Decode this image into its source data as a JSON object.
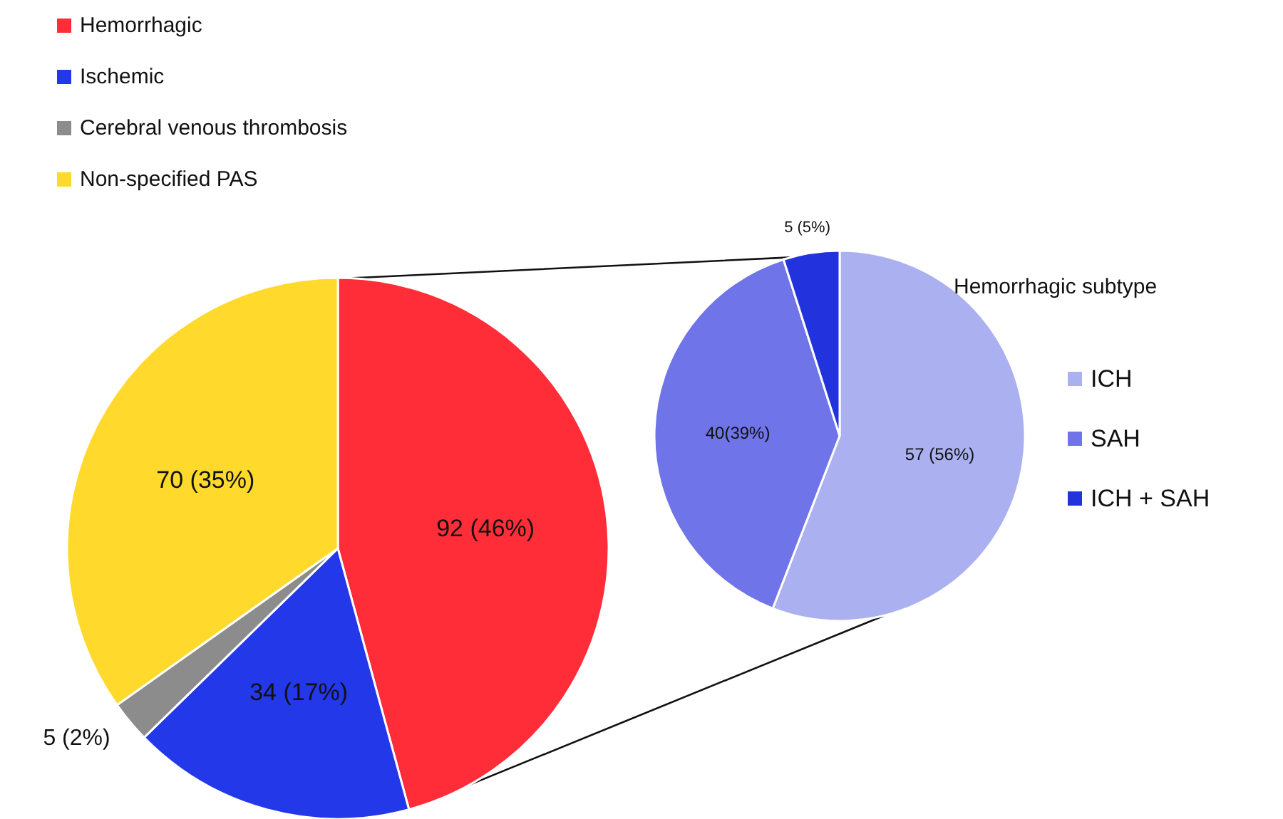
{
  "chart_data": [
    {
      "type": "pie",
      "categories": [
        "Hemorrhagic",
        "Ischemic",
        "Cerebral venous thrombosis",
        "Non-specified PAS"
      ],
      "values": [
        92,
        34,
        5,
        70
      ],
      "colors": [
        "#ff2d37",
        "#2338e8",
        "#8c8c8c",
        "#ffd92b"
      ],
      "value_labels": [
        "92 (46%)",
        "34 (17%)",
        "5 (2%)",
        "70 (35%)"
      ],
      "legend": "top left"
    },
    {
      "type": "pie",
      "legend_title": "Hemorrhagic subtype",
      "categories": [
        "ICH",
        "SAH",
        "ICH + SAH"
      ],
      "values": [
        57,
        40,
        5
      ],
      "colors": [
        "#aab0f0",
        "#6f74e8",
        "#2233dd"
      ],
      "value_labels": [
        "57 (56%)",
        "40(39%)",
        "5 (5%)"
      ],
      "legend": "right"
    }
  ]
}
